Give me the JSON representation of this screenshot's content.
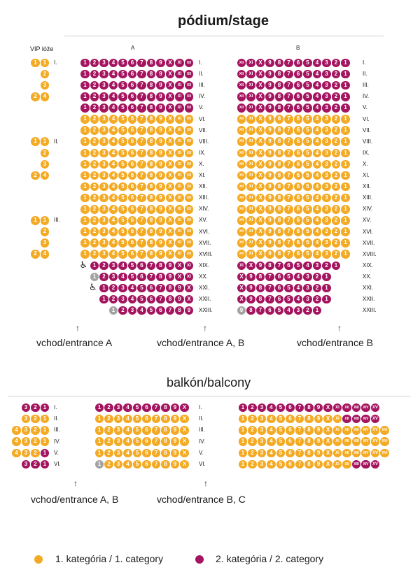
{
  "colors": {
    "cat1": "#F3AA24",
    "cat2": "#A4145F",
    "unavailable": "#A3A3A3",
    "rule": "#cfcfcf",
    "text": "#1a1a1a"
  },
  "stage": {
    "title": "pódium/stage",
    "vip_label": "VIP lóže",
    "section_a_label": "A",
    "section_b_label": "B",
    "vip_boxes": [
      {
        "roman": "I.",
        "rows": [
          [
            "1",
            "1"
          ],
          [
            "2"
          ],
          [
            "3"
          ],
          [
            "2",
            "4"
          ]
        ]
      },
      {
        "roman": "II.",
        "rows": [
          [
            "1",
            "1"
          ],
          [
            "2"
          ],
          [
            "3"
          ],
          [
            "2",
            "4"
          ]
        ]
      },
      {
        "roman": "III.",
        "rows": [
          [
            "1",
            "1"
          ],
          [
            "2"
          ],
          [
            "3"
          ],
          [
            "2",
            "4"
          ]
        ]
      }
    ],
    "rows": [
      {
        "label": "I.",
        "a": {
          "count": 12,
          "cat": 2
        },
        "b": {
          "count": 12,
          "cat": 2
        }
      },
      {
        "label": "II.",
        "a": {
          "count": 12,
          "cat": 2
        },
        "b": {
          "count": 12,
          "cat": 2
        }
      },
      {
        "label": "III.",
        "a": {
          "count": 12,
          "cat": 2
        },
        "b": {
          "count": 12,
          "cat": 2
        }
      },
      {
        "label": "IV.",
        "a": {
          "count": 12,
          "cat": 2
        },
        "b": {
          "count": 12,
          "cat": 2
        }
      },
      {
        "label": "V.",
        "a": {
          "count": 12,
          "cat": 2
        },
        "b": {
          "count": 12,
          "cat": 2
        }
      },
      {
        "label": "VI.",
        "a": {
          "count": 12,
          "cat": 1
        },
        "b": {
          "count": 12,
          "cat": 1
        }
      },
      {
        "label": "VII.",
        "a": {
          "count": 12,
          "cat": 1
        },
        "b": {
          "count": 12,
          "cat": 1
        }
      },
      {
        "label": "VIII.",
        "a": {
          "count": 12,
          "cat": 1
        },
        "b": {
          "count": 12,
          "cat": 1
        }
      },
      {
        "label": "IX.",
        "a": {
          "count": 12,
          "cat": 1
        },
        "b": {
          "count": 12,
          "cat": 1
        }
      },
      {
        "label": "X.",
        "a": {
          "count": 12,
          "cat": 1
        },
        "b": {
          "count": 12,
          "cat": 1
        }
      },
      {
        "label": "XI.",
        "a": {
          "count": 12,
          "cat": 1
        },
        "b": {
          "count": 12,
          "cat": 1
        }
      },
      {
        "label": "XII.",
        "a": {
          "count": 12,
          "cat": 1
        },
        "b": {
          "count": 12,
          "cat": 1
        }
      },
      {
        "label": "XIII.",
        "a": {
          "count": 12,
          "cat": 1
        },
        "b": {
          "count": 12,
          "cat": 1
        }
      },
      {
        "label": "XIV.",
        "a": {
          "count": 12,
          "cat": 1
        },
        "b": {
          "count": 12,
          "cat": 1
        }
      },
      {
        "label": "XV.",
        "a": {
          "count": 12,
          "cat": 1
        },
        "b": {
          "count": 12,
          "cat": 1
        }
      },
      {
        "label": "XVI.",
        "a": {
          "count": 12,
          "cat": 1
        },
        "b": {
          "count": 12,
          "cat": 1
        }
      },
      {
        "label": "XVII.",
        "a": {
          "count": 12,
          "cat": 1
        },
        "b": {
          "count": 12,
          "cat": 1
        }
      },
      {
        "label": "XVIII.",
        "a": {
          "count": 12,
          "cat": 1
        },
        "b": {
          "count": 12,
          "cat": 1
        }
      },
      {
        "label": "XIX.",
        "a": {
          "count": 11,
          "cat": 2,
          "wheelchair": true
        },
        "b": {
          "count": 11,
          "cat": 2
        }
      },
      {
        "label": "XX.",
        "a": {
          "count": 11,
          "cat": 2,
          "unavailable": [
            1
          ]
        },
        "b": {
          "count": 10,
          "cat": 2
        }
      },
      {
        "label": "XXI.",
        "a": {
          "count": 10,
          "cat": 2,
          "wheelchair": true
        },
        "b": {
          "count": 10,
          "cat": 2
        }
      },
      {
        "label": "XXII.",
        "a": {
          "count": 10,
          "cat": 2
        },
        "b": {
          "count": 10,
          "cat": 2
        }
      },
      {
        "label": "XXIII.",
        "a": {
          "count": 9,
          "cat": 2,
          "unavailable": [
            1
          ]
        },
        "b": {
          "count": 9,
          "cat": 2,
          "unavailable": [
            9
          ]
        }
      }
    ],
    "entrances": [
      "vchod/entrance A",
      "vchod/entrance A, B",
      "vchod/entrance B"
    ]
  },
  "balcony": {
    "title": "balkón/balcony",
    "left_boxes": [
      {
        "label": "I.",
        "seats": [
          {
            "n": "3",
            "cat": 2
          },
          {
            "n": "2",
            "cat": 2
          },
          {
            "n": "1",
            "cat": 2
          }
        ]
      },
      {
        "label": "II.",
        "seats": [
          {
            "n": "3",
            "cat": 1
          },
          {
            "n": "2",
            "cat": 1
          },
          {
            "n": "1",
            "cat": 1
          }
        ]
      },
      {
        "label": "III.",
        "seats": [
          {
            "n": "4",
            "cat": 1
          },
          {
            "n": "3",
            "cat": 1
          },
          {
            "n": "2",
            "cat": 1
          },
          {
            "n": "1",
            "cat": 1
          }
        ]
      },
      {
        "label": "IV.",
        "seats": [
          {
            "n": "4",
            "cat": 1
          },
          {
            "n": "3",
            "cat": 1
          },
          {
            "n": "2",
            "cat": 1
          },
          {
            "n": "1",
            "cat": 1
          }
        ]
      },
      {
        "label": "V.",
        "seats": [
          {
            "n": "4",
            "cat": 1
          },
          {
            "n": "3",
            "cat": 1
          },
          {
            "n": "2",
            "cat": 1
          },
          {
            "n": "1",
            "cat": 2
          }
        ]
      },
      {
        "label": "VI.",
        "seats": [
          {
            "n": "3",
            "cat": 2
          },
          {
            "n": "2",
            "cat": 2
          },
          {
            "n": "1",
            "cat": 2
          }
        ]
      }
    ],
    "rows": [
      {
        "label": "I.",
        "a": {
          "count": 10,
          "cat": 2
        },
        "b": {
          "count": 15,
          "cat": 2
        }
      },
      {
        "label": "II.",
        "a": {
          "count": 10,
          "cat": 1
        },
        "b": {
          "count": 15,
          "cat": 1,
          "cat2_from": 12
        }
      },
      {
        "label": "III.",
        "a": {
          "count": 10,
          "cat": 1
        },
        "b": {
          "count": 16,
          "cat": 1
        }
      },
      {
        "label": "IV.",
        "a": {
          "count": 10,
          "cat": 1
        },
        "b": {
          "count": 16,
          "cat": 1
        }
      },
      {
        "label": "V.",
        "a": {
          "count": 10,
          "cat": 1
        },
        "b": {
          "count": 16,
          "cat": 1
        }
      },
      {
        "label": "VI.",
        "a": {
          "count": 10,
          "cat": 1,
          "unavailable": [
            1
          ]
        },
        "b": {
          "count": 15,
          "cat": 1,
          "cat2_from": 13
        }
      }
    ],
    "entrances": [
      "vchod/entrance A, B",
      "vchod/entrance B, C"
    ]
  },
  "legend": [
    {
      "label": "1. kategória / 1. category",
      "cat": 1
    },
    {
      "label": "2. kategória / 2. category",
      "cat": 2
    }
  ]
}
